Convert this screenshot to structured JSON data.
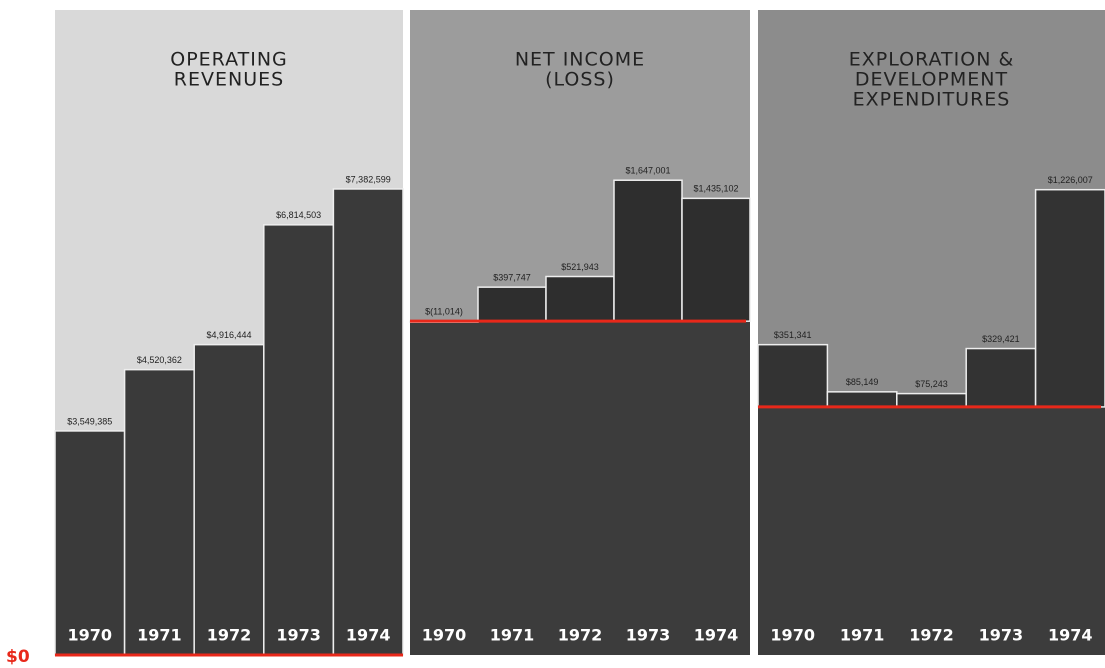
{
  "chart_data": [
    {
      "type": "bar",
      "title": [
        "OPERATING",
        "REVENUES"
      ],
      "categories": [
        "1970",
        "1971",
        "1972",
        "1973",
        "1974"
      ],
      "values": [
        3549385,
        4520362,
        4916444,
        6814503,
        7382599
      ],
      "value_labels": [
        "$3,549,385",
        "$4,520,362",
        "$4,916,444",
        "$6,814,503",
        "$7,382,599"
      ],
      "ylim": [
        0,
        8000000
      ],
      "yticks": [
        {
          "value": 0,
          "label": "$0"
        }
      ],
      "color": "#3a3a3a"
    },
    {
      "type": "bar",
      "title": [
        "NET INCOME",
        "(LOSS)"
      ],
      "categories": [
        "1970",
        "1971",
        "1972",
        "1973",
        "1974"
      ],
      "values": [
        -11014,
        397747,
        521943,
        1647001,
        1435102
      ],
      "value_labels": [
        "$(11,014)",
        "$397,747",
        "$521,943",
        "$1,647,001",
        "$1,435,102"
      ],
      "ylim": [
        -3900000,
        2000000
      ],
      "color": "#2e2e2e"
    },
    {
      "type": "bar",
      "title": [
        "EXPLORATION &",
        "DEVELOPMENT",
        "EXPENDITURES"
      ],
      "categories": [
        "1970",
        "1971",
        "1972",
        "1973",
        "1974"
      ],
      "values": [
        351341,
        85149,
        75243,
        329421,
        1226007
      ],
      "value_labels": [
        "$351,341",
        "$85,149",
        "$75,243",
        "$329,421",
        "$1,226,007"
      ],
      "ylim": [
        -1400000,
        1450000
      ],
      "color": "#333333"
    }
  ]
}
